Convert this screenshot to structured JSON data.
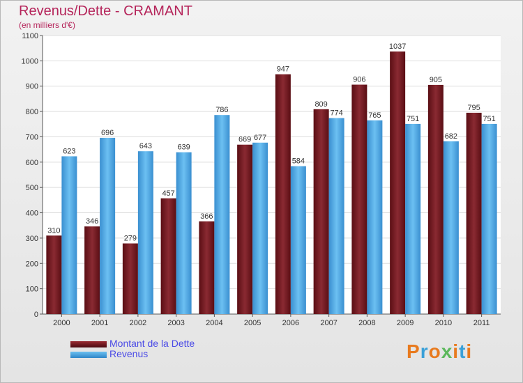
{
  "title": "Revenus/Dette - CRAMANT",
  "subtitle": "(en milliers d'€)",
  "chart_data": {
    "type": "bar",
    "title": "Revenus/Dette - CRAMANT",
    "ylabel": "(en milliers d'€)",
    "xlabel": "",
    "categories": [
      "2000",
      "2001",
      "2002",
      "2003",
      "2004",
      "2005",
      "2006",
      "2007",
      "2008",
      "2009",
      "2010",
      "2011"
    ],
    "ylim": [
      0,
      1100
    ],
    "yticks": [
      0,
      100,
      200,
      300,
      400,
      500,
      600,
      700,
      800,
      900,
      1000,
      1100
    ],
    "grid": true,
    "legend_position": "bottom-left",
    "series": [
      {
        "name": "Montant de la Dette",
        "color": "#7a1a22",
        "values": [
          310,
          346,
          279,
          457,
          366,
          669,
          947,
          809,
          906,
          1037,
          905,
          795
        ]
      },
      {
        "name": "Revenus",
        "color": "#4aa6e6",
        "values": [
          623,
          696,
          643,
          639,
          786,
          677,
          584,
          774,
          765,
          751,
          682,
          751
        ]
      }
    ]
  },
  "legend": [
    {
      "label": "Montant de la Dette",
      "color": "#7a1a22"
    },
    {
      "label": "Revenus",
      "color": "#4aa6e6"
    }
  ],
  "logo": {
    "text": "Proxiti",
    "colors": [
      "#e87a1e",
      "#3aa0d8",
      "#e87a1e",
      "#5cb85c",
      "#e87a1e",
      "#3aa0d8",
      "#e87a1e"
    ]
  }
}
